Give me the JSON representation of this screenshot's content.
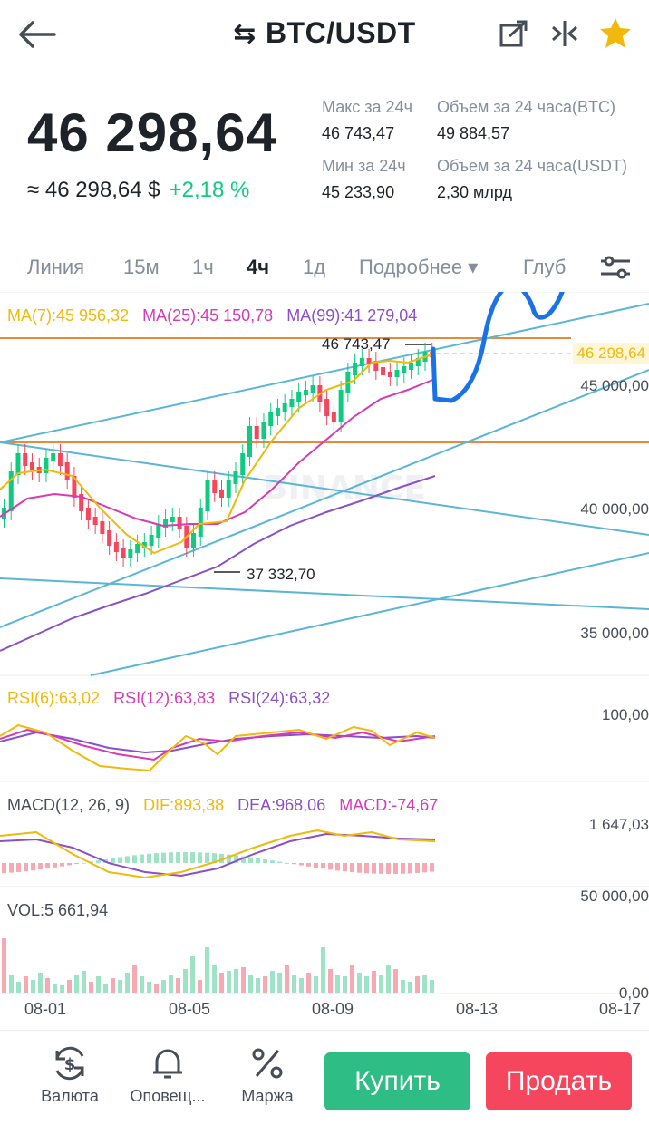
{
  "header": {
    "pair": "BTC/USDT",
    "swap_glyph": "⇆",
    "icons": [
      "back-arrow-icon",
      "share-icon",
      "compare-icon",
      "star-icon"
    ],
    "star_color": "#f0b90b"
  },
  "price": {
    "last": "46 298,64",
    "approx": "≈ 46 298,64 $",
    "change": "+2,18 %",
    "change_color": "#0ecb81"
  },
  "stats": {
    "high_label": "Макс за 24ч",
    "high_value": "46 743,47",
    "low_label": "Мин за 24ч",
    "low_value": "45 233,90",
    "vol_btc_label": "Объем за 24 часа(BTC)",
    "vol_btc_value": "49 884,57",
    "vol_usdt_label": "Объем за 24 часа(USDT)",
    "vol_usdt_value": "2,30 млрд"
  },
  "tabs": [
    {
      "label": "Линия",
      "active": false
    },
    {
      "label": "15м",
      "active": false
    },
    {
      "label": "1ч",
      "active": false
    },
    {
      "label": "4ч",
      "active": true
    },
    {
      "label": "1д",
      "active": false
    },
    {
      "label": "Подробнее ▾",
      "active": false
    },
    {
      "label": "Глуб",
      "active": false
    }
  ],
  "chart": {
    "ma7": "MA(7):45 956,32",
    "ma25": "MA(25):45 150,78",
    "ma99": "MA(99):41 279,04",
    "ma_colors": {
      "ma7": "#f0b90b",
      "ma25": "#d63ab5",
      "ma99": "#8a4fc9"
    },
    "y_labels": [
      "46 298,64",
      "45 000,00",
      "40 000,00",
      "35 000,00"
    ],
    "max_marker": "46 743,47",
    "min_marker": "37 332,70",
    "rsi": {
      "r6": "RSI(6):63,02",
      "r12": "RSI(12):63,83",
      "r24": "RSI(24):63,32",
      "axis": "100,00"
    },
    "macd": {
      "title": "MACD(12, 26, 9)",
      "dif": "DIF:893,38",
      "dea": "DEA:968,06",
      "macd": "MACD:-74,67",
      "axis": "1 647,03"
    },
    "vol": {
      "label": "VOL:5 661,94",
      "axis_top": "50 000,00",
      "axis_bottom": "0,00"
    },
    "x_labels": [
      "08-01",
      "08-05",
      "08-09",
      "08-13",
      "08-17"
    ],
    "up_color": "#0ecb81",
    "down_color": "#f6465d",
    "watermark": "BINANCE"
  },
  "bottom_nav": {
    "currency": "Валюта",
    "alerts": "Оповещ...",
    "margin": "Маржа",
    "buy": "Купить",
    "sell": "Продать"
  }
}
